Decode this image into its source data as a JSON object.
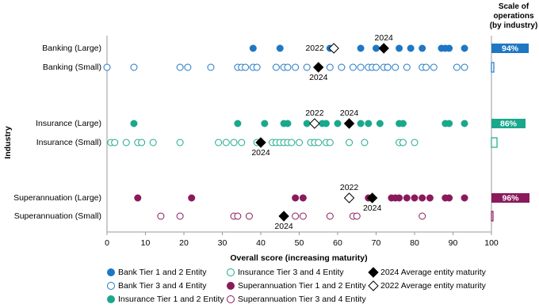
{
  "chart_data": {
    "type": "dot",
    "x_label": "Overall score (increasing maturity)",
    "y_label": "Industry",
    "categories": [
      "Banking (Large)",
      "Banking (Small)",
      "Insurance (Large)",
      "Insurance (Small)",
      "Superannuation (Large)",
      "Superannuation (Small)"
    ],
    "xlim": [
      0,
      100
    ],
    "xticks": [
      0,
      10,
      20,
      30,
      40,
      50,
      60,
      70,
      80,
      90,
      100
    ],
    "series": [
      {
        "name": "Bank Tier 1 and 2 Entity",
        "color": "#1f77c4",
        "marker": "circle",
        "filled": true,
        "values": [
          [
            38,
            45,
            58,
            66,
            70,
            76,
            79,
            82,
            87,
            88,
            89,
            93
          ],
          null,
          null,
          null,
          null,
          null
        ]
      },
      {
        "name": "Bank Tier 3 and 4 Entity",
        "color": "#1f77c4",
        "marker": "circle",
        "filled": false,
        "values": [
          null,
          [
            0,
            7,
            19,
            21,
            27,
            34,
            35,
            36,
            38,
            39,
            44,
            46,
            47,
            49,
            52,
            58,
            61,
            64,
            66,
            68,
            69,
            70,
            72,
            73,
            73,
            75,
            78,
            82,
            83,
            85,
            91,
            93
          ],
          null,
          null,
          null,
          null
        ]
      },
      {
        "name": "Insurance Tier 1 and 2 Entity",
        "color": "#1aa88c",
        "marker": "circle",
        "filled": true,
        "values": [
          null,
          null,
          [
            7,
            34,
            41,
            46,
            47,
            52,
            54,
            56,
            57,
            60,
            63,
            66,
            68,
            71,
            76,
            77,
            88,
            89,
            93
          ],
          null,
          null,
          null
        ]
      },
      {
        "name": "Insurance Tier 3 and 4 Entity",
        "color": "#1aa88c",
        "marker": "circle",
        "filled": false,
        "values": [
          null,
          null,
          null,
          [
            1,
            2,
            5,
            8,
            9,
            12,
            19,
            29,
            31,
            33,
            35,
            39,
            43,
            44,
            45,
            46,
            47,
            48,
            50,
            53,
            54,
            55,
            57,
            58,
            63,
            67,
            76,
            77,
            80
          ],
          null,
          null
        ]
      },
      {
        "name": "Superannuation Tier 1 and 2 Entity",
        "color": "#8a1a5c",
        "marker": "circle",
        "filled": true,
        "values": [
          null,
          null,
          null,
          null,
          [
            8,
            22,
            49,
            51,
            68,
            74,
            75,
            76,
            78,
            80,
            82,
            84,
            88,
            89,
            93
          ],
          null
        ]
      },
      {
        "name": "Superannuation Tier 3 and 4 Entity",
        "color": "#8a1a5c",
        "marker": "circle",
        "filled": false,
        "values": [
          null,
          null,
          null,
          null,
          null,
          [
            14,
            19,
            33,
            34,
            37,
            49,
            51,
            58,
            64,
            65,
            82
          ]
        ]
      },
      {
        "name": "2024 Average entity maturity",
        "point_label": "2024",
        "color": "#000000",
        "marker": "diamond",
        "filled": true,
        "values": [
          72,
          55,
          63,
          40,
          69,
          46
        ]
      },
      {
        "name": "2022 Average entity maturity",
        "point_label": "2022",
        "color": "#000000",
        "marker": "diamond",
        "filled": false,
        "values": [
          59,
          null,
          54,
          null,
          63,
          null
        ]
      }
    ],
    "scale_of_operations": {
      "title": "Scale of operations (by industry)",
      "values": [
        94,
        6,
        86,
        14,
        96,
        4
      ],
      "value_labels": [
        "94%",
        null,
        "86%",
        null,
        "96%",
        null
      ],
      "colors": [
        "#1f77c4",
        "#1f77c4",
        "#1aa88c",
        "#1aa88c",
        "#8a1a5c",
        "#8a1a5c"
      ]
    }
  }
}
